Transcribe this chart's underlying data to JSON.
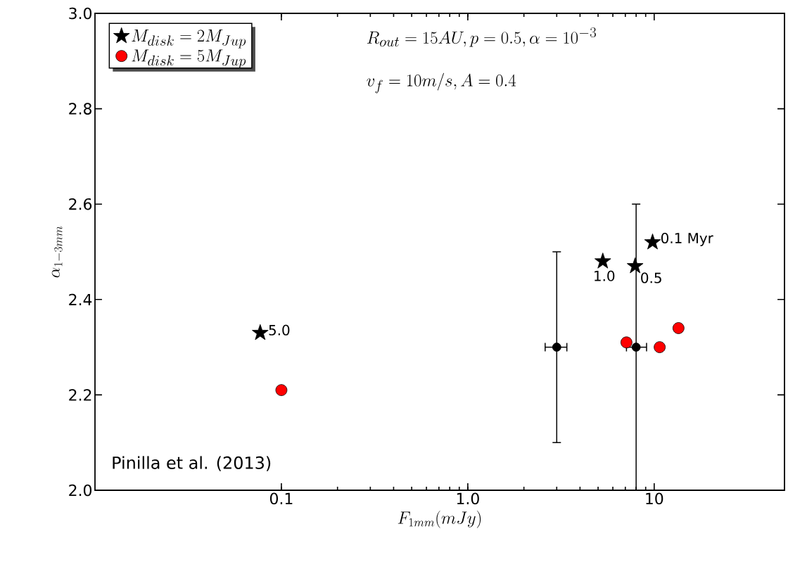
{
  "chart_data": {
    "type": "scatter",
    "xlabel": "F_{1mm}(mJy)",
    "ylabel": "\\alpha_{1-3mm}",
    "log": "x",
    "xlim": [
      0.01,
      50
    ],
    "xticks": [
      {
        "value": 0.1,
        "label": "0.1"
      },
      {
        "value": 1,
        "label": "1.0"
      },
      {
        "value": 10,
        "label": "10"
      }
    ],
    "ylim": [
      2,
      3
    ],
    "yticks": [
      {
        "value": 2,
        "label": "2.0"
      },
      {
        "value": 2.2,
        "label": "2.2"
      },
      {
        "value": 2.4,
        "label": "2.4"
      },
      {
        "value": 2.6,
        "label": "2.6"
      },
      {
        "value": 2.8,
        "label": "2.8"
      },
      {
        "value": 3,
        "label": "3.0"
      }
    ],
    "legend": "top left",
    "series": [
      {
        "name": "M_{disk}=2M_{Jup}",
        "color": "#000000",
        "marker": "star",
        "x": [
          9.8,
          7.9,
          5.3,
          0.077
        ],
        "values": [
          2.52,
          2.47,
          2.48,
          2.33
        ]
      },
      {
        "name": "M_{disk}=5M_{Jup}",
        "color": "#ff0000",
        "marker": "circle",
        "x": [
          0.1,
          7.1,
          10.7,
          13.5
        ],
        "values": [
          2.21,
          2.31,
          2.3,
          2.34
        ]
      },
      {
        "color": "#000000",
        "marker": "circle",
        "x": [
          3.0,
          8.0
        ],
        "values": [
          2.3,
          2.3
        ],
        "errors": [
          0.2,
          0.3
        ],
        "xerrors": [
          [
            2.6,
            3.4
          ],
          [
            7.1,
            9.1
          ]
        ]
      }
    ],
    "annotations": [
      {
        "text": "0.1 Myr",
        "x": 9.8,
        "y": 2.52
      },
      {
        "text": "0.5",
        "x": 7.9,
        "y": 2.47
      },
      {
        "text": "1.0",
        "x": 5.3,
        "y": 2.48
      },
      {
        "text": "5.0",
        "x": 0.077,
        "y": 2.33
      },
      "R_{out}=15AU,p=0.5,\\alpha=10^{-3}",
      "v_f=10m/s,A=0.4",
      "Pinilla et al. (2013)"
    ]
  }
}
